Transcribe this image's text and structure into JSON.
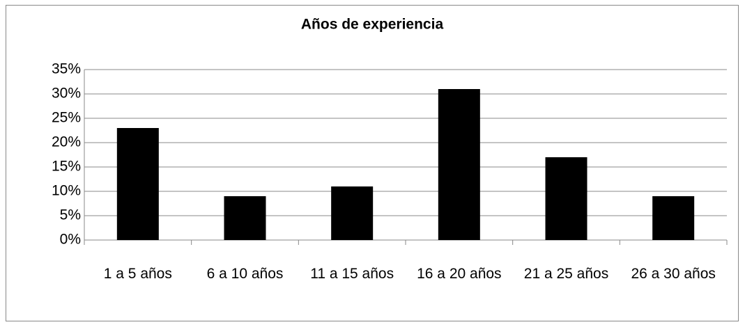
{
  "chart_data": {
    "type": "bar",
    "title": "Años de experiencia",
    "categories": [
      "1 a 5 años",
      "6 a 10 años",
      "11 a 15 años",
      "16 a 20 años",
      "21 a 25 años",
      "26 a 30 años"
    ],
    "values": [
      23,
      9,
      11,
      31,
      17,
      9
    ],
    "color": "#000000",
    "ylim": [
      0,
      35
    ],
    "yticks": [
      {
        "value": 0,
        "label": "0%"
      },
      {
        "value": 5,
        "label": "5%"
      },
      {
        "value": 10,
        "label": "10%"
      },
      {
        "value": 15,
        "label": "15%"
      },
      {
        "value": 20,
        "label": "20%"
      },
      {
        "value": 25,
        "label": "25%"
      },
      {
        "value": 30,
        "label": "30%"
      },
      {
        "value": 35,
        "label": "35%"
      }
    ],
    "grid": true
  }
}
